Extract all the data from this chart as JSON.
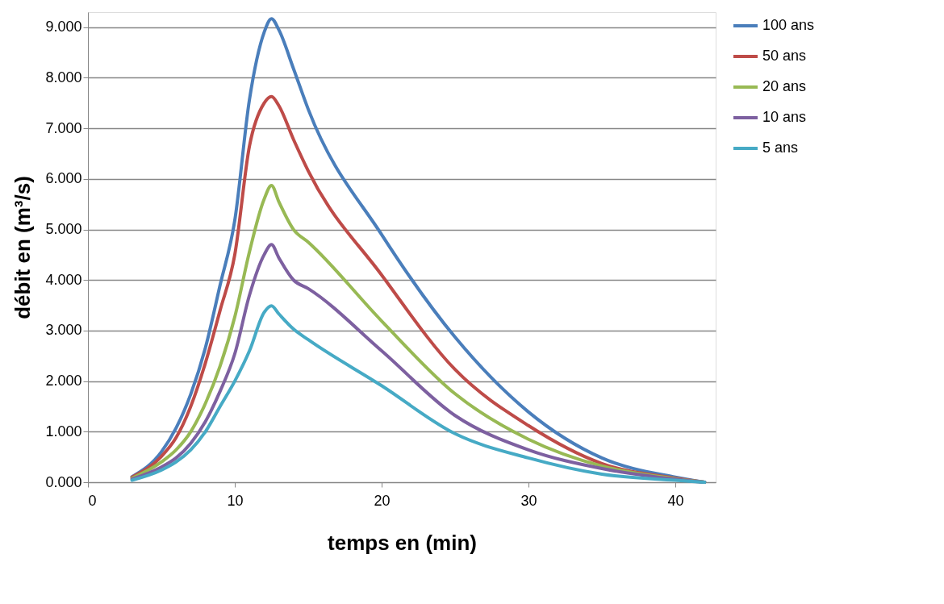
{
  "chart_data": {
    "type": "line",
    "xlabel": "temps en (min)",
    "ylabel": "débit en (m³/s)",
    "x": [
      3,
      5,
      6,
      7,
      8,
      9,
      10,
      11,
      12,
      12.5,
      13,
      14,
      15,
      20,
      25,
      30,
      35,
      40,
      42
    ],
    "series": [
      {
        "name": "100 ans",
        "color": "#4a7ebb",
        "values": [
          0.11,
          0.6,
          1.07,
          1.74,
          2.66,
          3.9,
          5.18,
          7.57,
          8.9,
          9.17,
          8.95,
          8.18,
          7.38,
          4.9,
          2.87,
          1.39,
          0.48,
          0.1,
          0
        ]
      },
      {
        "name": "50 ans",
        "color": "#be4b48",
        "values": [
          0.1,
          0.51,
          0.88,
          1.5,
          2.36,
          3.4,
          4.5,
          6.65,
          7.5,
          7.63,
          7.45,
          6.78,
          6.16,
          4.1,
          2.23,
          1.12,
          0.37,
          0.08,
          0
        ]
      },
      {
        "name": "20 ans",
        "color": "#98b954",
        "values": [
          0.08,
          0.4,
          0.64,
          1.0,
          1.56,
          2.3,
          3.27,
          4.56,
          5.6,
          5.87,
          5.55,
          5.0,
          4.75,
          3.19,
          1.75,
          0.85,
          0.32,
          0.07,
          0
        ]
      },
      {
        "name": "10 ans",
        "color": "#7d60a0",
        "values": [
          0.06,
          0.3,
          0.48,
          0.77,
          1.2,
          1.8,
          2.54,
          3.7,
          4.5,
          4.7,
          4.44,
          4.0,
          3.83,
          2.6,
          1.32,
          0.64,
          0.27,
          0.06,
          0
        ]
      },
      {
        "name": "5 ans",
        "color": "#46aac5",
        "values": [
          0.04,
          0.24,
          0.4,
          0.64,
          1.0,
          1.5,
          2.0,
          2.6,
          3.36,
          3.49,
          3.33,
          3.03,
          2.82,
          1.91,
          0.96,
          0.48,
          0.16,
          0.04,
          0
        ]
      }
    ],
    "xlim": [
      0,
      42.75
    ],
    "xticks": [
      0,
      10,
      20,
      30,
      40
    ],
    "ylim": [
      0,
      9.3
    ],
    "yticks": [
      {
        "value": 0,
        "label": "0.000"
      },
      {
        "value": 1,
        "label": "1.000"
      },
      {
        "value": 2,
        "label": "2.000"
      },
      {
        "value": 3,
        "label": "3.000"
      },
      {
        "value": 4,
        "label": "4.000"
      },
      {
        "value": 5,
        "label": "5.000"
      },
      {
        "value": 6,
        "label": "6.000"
      },
      {
        "value": 7,
        "label": "7.000"
      },
      {
        "value": 8,
        "label": "8.000"
      },
      {
        "value": 9,
        "label": "9.000"
      }
    ],
    "grid": "y",
    "legend": "right",
    "marker": "none",
    "line_style": "solid"
  }
}
